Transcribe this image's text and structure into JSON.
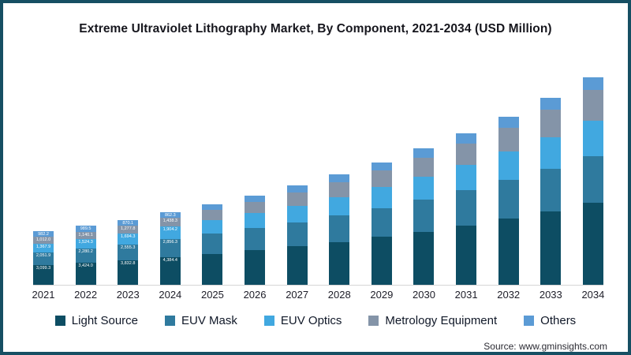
{
  "title": "Extreme Ultraviolet Lithography Market, By Component, 2021-2034 (USD Million)",
  "source": "Source: www.gminsights.com",
  "frame_border_color": "#164f63",
  "legend": [
    {
      "label": "Light Source",
      "color": "#0d4d63"
    },
    {
      "label": "EUV Mask",
      "color": "#2f7a9e"
    },
    {
      "label": "EUV Optics",
      "color": "#41a8e0"
    },
    {
      "label": "Metrology Equipment",
      "color": "#8494a8"
    },
    {
      "label": "Others",
      "color": "#5b9bd5"
    }
  ],
  "chart_data": {
    "type": "bar",
    "stacked": true,
    "unit": "USD Million",
    "title": "Extreme Ultraviolet Lithography Market, By Component, 2021-2034 (USD Million)",
    "categories": [
      "2021",
      "2022",
      "2023",
      "2024",
      "2025",
      "2026",
      "2027",
      "2028",
      "2029",
      "2030",
      "2031",
      "2032",
      "2033",
      "2034"
    ],
    "labeled_categories": [
      "2021",
      "2022",
      "2023",
      "2024"
    ],
    "ylim": [
      0,
      33000
    ],
    "grid": false,
    "legend_position": "bottom",
    "series": [
      {
        "name": "Light Source",
        "color": "#0d4d63",
        "values": [
          3099.3,
          3424.0,
          3832.8,
          4384.4,
          4884,
          5441,
          6061,
          6752,
          7522,
          8380,
          9335,
          10399,
          11585,
          12906
        ],
        "labels": [
          "3,099.3",
          "3,424.0",
          "3,832.8",
          "4,384.4",
          "",
          "",
          "",
          "",
          "",
          "",
          "",
          "",
          "",
          ""
        ]
      },
      {
        "name": "EUV Mask",
        "color": "#2f7a9e",
        "values": [
          2051.9,
          2280.2,
          2555.3,
          2856.3,
          3139,
          3450,
          3792,
          4167,
          4580,
          5033,
          5531,
          6079,
          6681,
          7342
        ],
        "labels": [
          "2,051.9",
          "2,280.2",
          "2,555.3",
          "2,856.3",
          "",
          "",
          "",
          "",
          "",
          "",
          "",
          "",
          "",
          ""
        ]
      },
      {
        "name": "EUV Optics",
        "color": "#41a8e0",
        "values": [
          1367.9,
          1524.3,
          1694.3,
          1904.2,
          2121,
          2363,
          2632,
          2932,
          3267,
          3639,
          4054,
          4516,
          5031,
          5605
        ],
        "labels": [
          "1,367.9",
          "1,524.3",
          "1,694.3",
          "1,904.2",
          "",
          "",
          "",
          "",
          "",
          "",
          "",
          "",
          "",
          ""
        ]
      },
      {
        "name": "Metrology Equipment",
        "color": "#8494a8",
        "values": [
          1012.0,
          1140.1,
          1277.8,
          1438.3,
          1624,
          1833,
          2069,
          2336,
          2638,
          2978,
          3362,
          3796,
          4285,
          4838
        ],
        "labels": [
          "1,012.0",
          "1,140.1",
          "1,277.8",
          "1,438.3",
          "",
          "",
          "",
          "",
          "",
          "",
          "",
          "",
          "",
          ""
        ]
      },
      {
        "name": "Others",
        "color": "#5b9bd5",
        "values": [
          982.2,
          989.5,
          870.1,
          862.3,
          937,
          1019,
          1107,
          1204,
          1308,
          1422,
          1546,
          1681,
          1827,
          1986
        ],
        "labels": [
          "982.2",
          "989.5",
          "870.1",
          "862.3",
          "",
          "",
          "",
          "",
          "",
          "",
          "",
          "",
          "",
          ""
        ]
      }
    ]
  }
}
